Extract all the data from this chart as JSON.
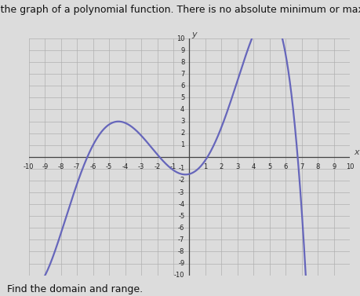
{
  "title": "This is the graph of a polynomial function. There is no absolute minimum or maximum.",
  "footer": "Find the domain and range.",
  "xlim": [
    -10,
    10
  ],
  "ylim": [
    -10,
    10
  ],
  "xlabel": "x",
  "ylabel": "y",
  "curve_color": "#6666bb",
  "curve_linewidth": 1.6,
  "background_color": "#dcdcdc",
  "axis_color": "#444444",
  "text_color": "#111111",
  "title_fontsize": 9,
  "footer_fontsize": 9,
  "tick_fontsize": 6
}
